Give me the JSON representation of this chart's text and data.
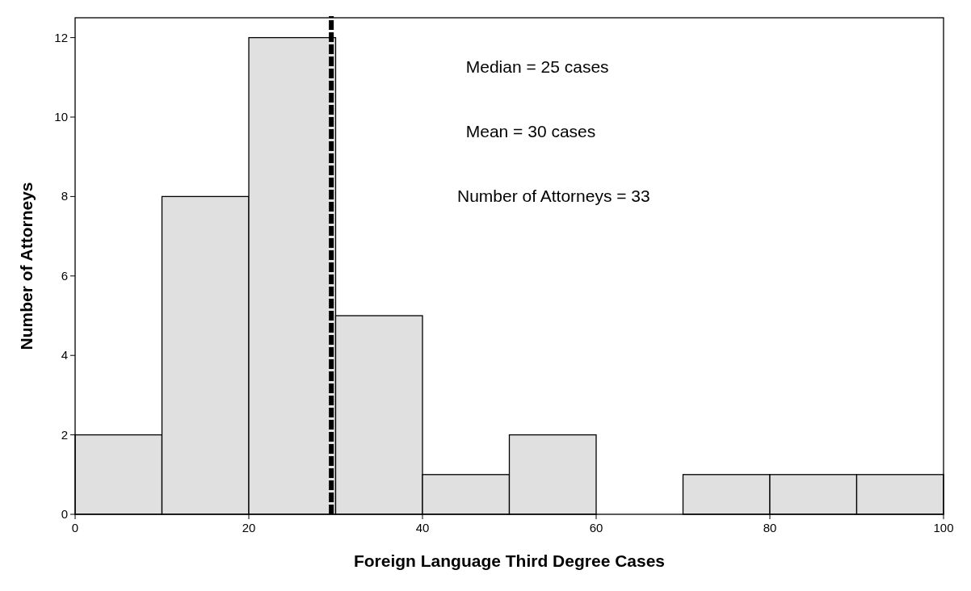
{
  "chart_data": {
    "type": "histogram",
    "xlabel": "Foreign Language Third Degree Cases",
    "ylabel": "Number of Attorneys",
    "bins": [
      0,
      10,
      20,
      30,
      40,
      50,
      60,
      70,
      80,
      90,
      100
    ],
    "values": [
      2,
      8,
      12,
      5,
      1,
      2,
      0,
      1,
      1,
      1
    ],
    "color": "#e0e0e0",
    "xlim": [
      0,
      100
    ],
    "xticks": [
      0,
      20,
      40,
      60,
      80,
      100
    ],
    "ylim": [
      0,
      12.5
    ],
    "yticks": [
      0,
      2,
      4,
      6,
      8,
      10,
      12
    ],
    "grid": false,
    "ref_lines": [
      {
        "axis": "x",
        "value": 29.5,
        "color": "#000000",
        "line_style": "dashed"
      }
    ],
    "annotations": [
      "Median = 25 cases",
      "Mean = 30 cases",
      "Number of Attorneys = 33"
    ]
  }
}
